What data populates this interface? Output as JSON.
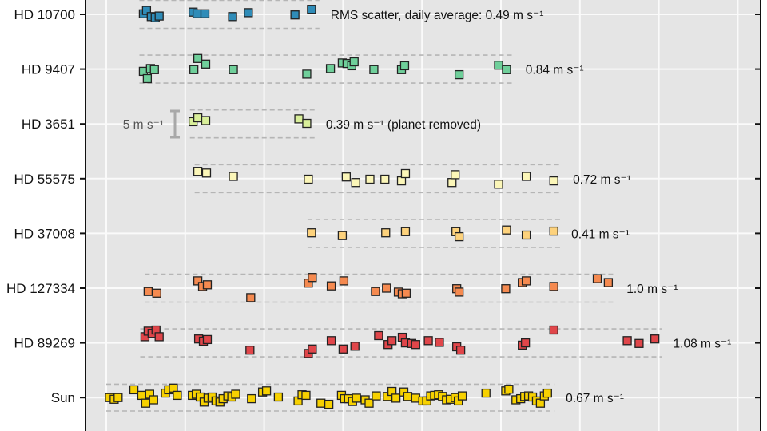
{
  "chart_data": {
    "type": "scatter",
    "title": "",
    "xlabel": "",
    "ylabel": "",
    "xlim": [
      -26,
      829
    ],
    "x_gridlines": [
      0,
      100,
      200,
      300,
      400,
      500,
      600,
      700,
      800
    ],
    "y_units_per_row": "m s⁻¹",
    "grid": true,
    "scale_bar": {
      "label": "5 m s⁻¹",
      "value": 5
    },
    "series": [
      {
        "name": "HD 10700",
        "color": "#2f8cb8",
        "label": "RMS scatter, daily average: 0.49 m s⁻¹",
        "band": [
          42,
          270
        ],
        "band_halfwidth": 2.5,
        "points": [
          [
            47,
            0.1
          ],
          [
            51,
            0.7
          ],
          [
            57,
            -0.4
          ],
          [
            62,
            -0.6
          ],
          [
            67,
            -0.3
          ],
          [
            110,
            0.4
          ],
          [
            115,
            0.1
          ],
          [
            125,
            0.1
          ],
          [
            160,
            -0.4
          ],
          [
            180,
            0.3
          ],
          [
            239,
            -0.1
          ],
          [
            260,
            0.9
          ]
        ]
      },
      {
        "name": "HD 9407",
        "color": "#6fcf9a",
        "label": "0.84 m s⁻¹",
        "band": [
          42,
          517
        ],
        "band_halfwidth": 2.5,
        "points": [
          [
            47,
            -0.4
          ],
          [
            56,
            0.1
          ],
          [
            61,
            -0.1
          ],
          [
            52,
            -1.7
          ],
          [
            111,
            -0.1
          ],
          [
            116,
            1.9
          ],
          [
            126,
            0.9
          ],
          [
            161,
            -0.1
          ],
          [
            254,
            -0.9
          ],
          [
            284,
            0.1
          ],
          [
            299,
            1.1
          ],
          [
            305,
            1.0
          ],
          [
            311,
            0.6
          ],
          [
            314,
            1.3
          ],
          [
            339,
            -0.1
          ],
          [
            374,
            -0.1
          ],
          [
            378,
            0.6
          ],
          [
            447,
            -1.0
          ],
          [
            497,
            0.7
          ],
          [
            507,
            -0.1
          ]
        ]
      },
      {
        "name": "HD 3651",
        "color": "#d9ef9a",
        "label": "0.39 m s⁻¹ (planet removed)",
        "band": [
          106,
          264
        ],
        "band_halfwidth": 2.5,
        "points": [
          [
            110,
            0.4
          ],
          [
            116,
            1.1
          ],
          [
            126,
            0.6
          ],
          [
            244,
            0.9
          ],
          [
            254,
            0.1
          ]
        ]
      },
      {
        "name": "HD 55575",
        "color": "#fbf6b8",
        "label": "0.72 m s⁻¹",
        "band": [
          112,
          577
        ],
        "band_halfwidth": 2.5,
        "points": [
          [
            116,
            1.3
          ],
          [
            127,
            1.0
          ],
          [
            161,
            0.4
          ],
          [
            256,
            -0.1
          ],
          [
            304,
            0.3
          ],
          [
            316,
            -0.7
          ],
          [
            334,
            -0.1
          ],
          [
            353,
            -0.1
          ],
          [
            374,
            -0.4
          ],
          [
            379,
            0.9
          ],
          [
            438,
            -0.7
          ],
          [
            442,
            0.7
          ],
          [
            497,
            -1.0
          ],
          [
            532,
            0.4
          ],
          [
            567,
            -0.4
          ]
        ]
      },
      {
        "name": "HD 37008",
        "color": "#fdd27c",
        "label": "0.41 m s⁻¹",
        "band": [
          255,
          575
        ],
        "band_halfwidth": 2.5,
        "points": [
          [
            260,
            0.1
          ],
          [
            299,
            -0.4
          ],
          [
            354,
            0.1
          ],
          [
            379,
            0.3
          ],
          [
            443,
            0.3
          ],
          [
            447,
            -0.6
          ],
          [
            507,
            0.6
          ],
          [
            532,
            -0.3
          ],
          [
            567,
            0.4
          ]
        ]
      },
      {
        "name": "HD 127334",
        "color": "#f58a50",
        "label": "1.0 m s⁻¹",
        "band": [
          49,
          645
        ],
        "band_halfwidth": 2.5,
        "points": [
          [
            53,
            -0.6
          ],
          [
            64,
            -0.9
          ],
          [
            116,
            1.3
          ],
          [
            122,
            0.3
          ],
          [
            128,
            0.6
          ],
          [
            183,
            -1.7
          ],
          [
            256,
            0.9
          ],
          [
            261,
            1.9
          ],
          [
            285,
            0.4
          ],
          [
            301,
            1.3
          ],
          [
            341,
            -0.6
          ],
          [
            355,
            0.0
          ],
          [
            370,
            -0.7
          ],
          [
            375,
            -1.0
          ],
          [
            380,
            -0.9
          ],
          [
            444,
            -0.1
          ],
          [
            447,
            -0.7
          ],
          [
            506,
            -0.1
          ],
          [
            527,
            1.0
          ],
          [
            532,
            1.3
          ],
          [
            567,
            0.3
          ],
          [
            622,
            1.7
          ],
          [
            636,
            1.0
          ]
        ]
      },
      {
        "name": "HD 89269",
        "color": "#e0464a",
        "label": "1.08 m s⁻¹",
        "band": [
          43,
          704
        ],
        "band_halfwidth": 2.5,
        "points": [
          [
            49,
            1.1
          ],
          [
            53,
            2.1
          ],
          [
            58,
            1.7
          ],
          [
            63,
            2.3
          ],
          [
            67,
            1.1
          ],
          [
            117,
            0.7
          ],
          [
            123,
            0.3
          ],
          [
            128,
            0.6
          ],
          [
            182,
            -1.3
          ],
          [
            256,
            -1.9
          ],
          [
            261,
            -1.1
          ],
          [
            285,
            0.4
          ],
          [
            300,
            -1.1
          ],
          [
            315,
            -0.6
          ],
          [
            345,
            1.3
          ],
          [
            357,
            -0.3
          ],
          [
            362,
            0.4
          ],
          [
            375,
            1.0
          ],
          [
            379,
            0.0
          ],
          [
            387,
            -0.1
          ],
          [
            392,
            -0.3
          ],
          [
            408,
            0.4
          ],
          [
            422,
            0.1
          ],
          [
            444,
            -0.7
          ],
          [
            449,
            -1.3
          ],
          [
            527,
            -0.4
          ],
          [
            531,
            0.0
          ],
          [
            567,
            2.3
          ],
          [
            660,
            0.4
          ],
          [
            675,
            -0.1
          ],
          [
            695,
            0.7
          ]
        ]
      },
      {
        "name": "Sun",
        "color": "#f7d100",
        "label": "0.67 m s⁻¹",
        "band": [
          0,
          568
        ],
        "band_halfwidth": 2.4,
        "points": [
          [
            4,
            0
          ],
          [
            10,
            -0.3
          ],
          [
            15,
            0
          ],
          [
            35,
            1.4
          ],
          [
            45,
            0.4
          ],
          [
            50,
            -1.0
          ],
          [
            55,
            0.6
          ],
          [
            60,
            -0.4
          ],
          [
            75,
            0.8
          ],
          [
            79,
            1.4
          ],
          [
            85,
            1.7
          ],
          [
            90,
            0.4
          ],
          [
            109,
            0.4
          ],
          [
            114,
            0.6
          ],
          [
            119,
            0.1
          ],
          [
            124,
            -0.8
          ],
          [
            129,
            -0.1
          ],
          [
            134,
            0.1
          ],
          [
            139,
            -0.6
          ],
          [
            144,
            -0.8
          ],
          [
            148,
            -0.2
          ],
          [
            154,
            0.3
          ],
          [
            159,
            0.1
          ],
          [
            164,
            0.6
          ],
          [
            184,
            -0.2
          ],
          [
            198,
            1.0
          ],
          [
            203,
            1.2
          ],
          [
            218,
            0.1
          ],
          [
            243,
            -0.6
          ],
          [
            248,
            0.5
          ],
          [
            253,
            0.4
          ],
          [
            272,
            -1.0
          ],
          [
            282,
            -1.2
          ],
          [
            298,
            0.4
          ],
          [
            302,
            -0.2
          ],
          [
            307,
            -0.2
          ],
          [
            312,
            -0.7
          ],
          [
            317,
            -0.1
          ],
          [
            328,
            -0.4
          ],
          [
            333,
            -1.0
          ],
          [
            342,
            0.3
          ],
          [
            356,
            0.2
          ],
          [
            362,
            1.1
          ],
          [
            367,
            -0.1
          ],
          [
            377,
            1.0
          ],
          [
            382,
            0.2
          ],
          [
            392,
            -0.1
          ],
          [
            401,
            -0.6
          ],
          [
            406,
            -0.6
          ],
          [
            411,
            0.3
          ],
          [
            416,
            0.4
          ],
          [
            421,
            0.5
          ],
          [
            426,
            0.2
          ],
          [
            431,
            -0.4
          ],
          [
            436,
            -0.3
          ],
          [
            442,
            0
          ],
          [
            446,
            -0.6
          ],
          [
            451,
            0.3
          ],
          [
            481,
            0.8
          ],
          [
            506,
            1.2
          ],
          [
            510,
            1.5
          ],
          [
            519,
            -0.4
          ],
          [
            525,
            -0.2
          ],
          [
            530,
            0.2
          ],
          [
            535,
            0.3
          ],
          [
            540,
            0.1
          ],
          [
            545,
            -0.6
          ],
          [
            550,
            -1.0
          ],
          [
            555,
            0.3
          ],
          [
            559,
            0.8
          ]
        ]
      }
    ]
  }
}
